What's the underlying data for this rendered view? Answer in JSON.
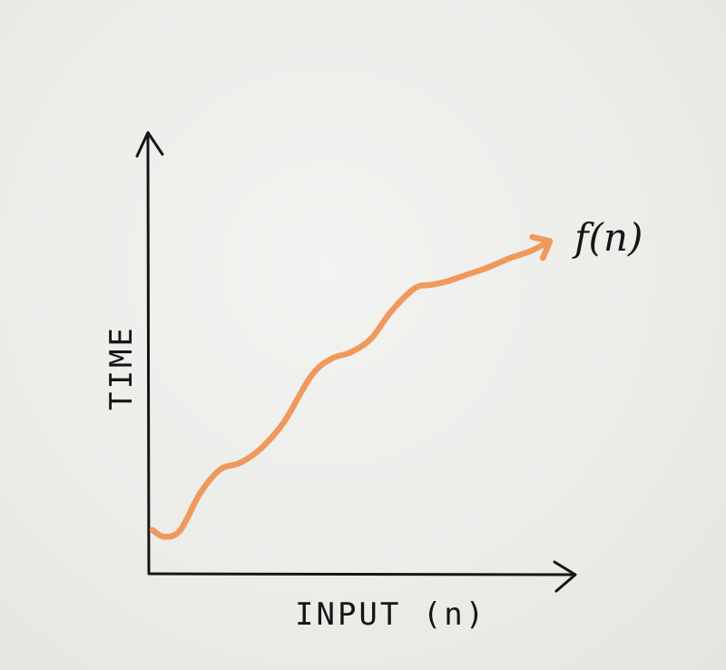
{
  "colors": {
    "series": "#f0995c",
    "ink": "#151515"
  },
  "chart_data": {
    "type": "line",
    "title": "",
    "xlabel": "INPUT (n)",
    "ylabel": "TIME",
    "xlim": [
      0,
      100
    ],
    "ylim": [
      0,
      100
    ],
    "grid": false,
    "series": [
      {
        "name": "f(n)",
        "x": [
          0,
          3,
          7,
          12,
          17,
          22,
          27,
          33,
          40,
          45,
          50,
          55,
          60,
          66,
          70,
          74,
          79,
          84,
          90,
          95,
          100
        ],
        "y": [
          13,
          11,
          13,
          24,
          31,
          33,
          37,
          45,
          59,
          64,
          66,
          70,
          78,
          85,
          86,
          87,
          89,
          91,
          94,
          96,
          99
        ]
      }
    ]
  }
}
